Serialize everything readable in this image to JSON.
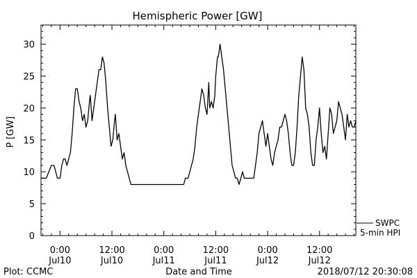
{
  "chart_data": {
    "type": "line",
    "title": "Hemispheric Power [GW]",
    "xlabel": "Date and Time",
    "ylabel": "P [GW]",
    "ylim": [
      0,
      33
    ],
    "yticks": [
      0,
      5,
      10,
      15,
      20,
      25,
      30
    ],
    "xlim_hours": [
      -2.2,
      34.2
    ],
    "xticks": [
      {
        "h": 0,
        "time": "0:00",
        "date": "Jul10"
      },
      {
        "h": 6,
        "time": "12:00",
        "date": "Jul10"
      },
      {
        "h": 12,
        "time": "0:00",
        "date": "Jul11"
      },
      {
        "h": 18,
        "time": "12:00",
        "date": "Jul11"
      },
      {
        "h": 24,
        "time": "0:00",
        "date": "Jul12"
      },
      {
        "h": 30,
        "time": "12:00",
        "date": "Jul12"
      }
    ],
    "series": [
      {
        "name": "SWPC 5-min HPI",
        "color": "#000000",
        "points": [
          [
            -2.2,
            9
          ],
          [
            -1.6,
            9
          ],
          [
            -1.3,
            10
          ],
          [
            -1.0,
            11
          ],
          [
            -0.7,
            11
          ],
          [
            -0.5,
            10
          ],
          [
            -0.3,
            9
          ],
          [
            0.0,
            9
          ],
          [
            0.2,
            11
          ],
          [
            0.4,
            12
          ],
          [
            0.6,
            12
          ],
          [
            0.8,
            11
          ],
          [
            1.0,
            12
          ],
          [
            1.2,
            13
          ],
          [
            1.4,
            16
          ],
          [
            1.6,
            20
          ],
          [
            1.8,
            23
          ],
          [
            2.0,
            23
          ],
          [
            2.2,
            21
          ],
          [
            2.4,
            20
          ],
          [
            2.6,
            18
          ],
          [
            2.8,
            19
          ],
          [
            3.0,
            17
          ],
          [
            3.2,
            18
          ],
          [
            3.4,
            21
          ],
          [
            3.5,
            22
          ],
          [
            3.7,
            18
          ],
          [
            3.9,
            20
          ],
          [
            4.1,
            22
          ],
          [
            4.3,
            24
          ],
          [
            4.5,
            26
          ],
          [
            4.7,
            26
          ],
          [
            4.9,
            28
          ],
          [
            5.1,
            27
          ],
          [
            5.3,
            24
          ],
          [
            5.5,
            20
          ],
          [
            5.7,
            17
          ],
          [
            5.9,
            14
          ],
          [
            6.1,
            15
          ],
          [
            6.3,
            18
          ],
          [
            6.4,
            19
          ],
          [
            6.6,
            15
          ],
          [
            6.8,
            16
          ],
          [
            7.0,
            14
          ],
          [
            7.2,
            12
          ],
          [
            7.4,
            13
          ],
          [
            7.6,
            11
          ],
          [
            7.8,
            10
          ],
          [
            8.0,
            9
          ],
          [
            8.2,
            8
          ],
          [
            9.0,
            8
          ],
          [
            10.0,
            8
          ],
          [
            11.0,
            8
          ],
          [
            12.0,
            8
          ],
          [
            13.0,
            8
          ],
          [
            14.0,
            8
          ],
          [
            14.3,
            8
          ],
          [
            14.5,
            9
          ],
          [
            14.8,
            9
          ],
          [
            15.0,
            10
          ],
          [
            15.2,
            11
          ],
          [
            15.4,
            12
          ],
          [
            15.6,
            14
          ],
          [
            15.8,
            17
          ],
          [
            16.0,
            19
          ],
          [
            16.2,
            21
          ],
          [
            16.4,
            23
          ],
          [
            16.6,
            22
          ],
          [
            16.8,
            20
          ],
          [
            17.0,
            19
          ],
          [
            17.2,
            24
          ],
          [
            17.3,
            20
          ],
          [
            17.5,
            21
          ],
          [
            17.7,
            20
          ],
          [
            17.9,
            22
          ],
          [
            18.0,
            25
          ],
          [
            18.2,
            28
          ],
          [
            18.3,
            28
          ],
          [
            18.4,
            29
          ],
          [
            18.5,
            30
          ],
          [
            18.7,
            28
          ],
          [
            18.9,
            26
          ],
          [
            19.1,
            23
          ],
          [
            19.3,
            20
          ],
          [
            19.5,
            17
          ],
          [
            19.7,
            14
          ],
          [
            19.9,
            11
          ],
          [
            20.1,
            10
          ],
          [
            20.3,
            9
          ],
          [
            20.5,
            9
          ],
          [
            20.7,
            8
          ],
          [
            20.9,
            9
          ],
          [
            21.1,
            10
          ],
          [
            21.3,
            9
          ],
          [
            22.0,
            9
          ],
          [
            22.4,
            9
          ],
          [
            22.6,
            11
          ],
          [
            22.8,
            13
          ],
          [
            23.0,
            16
          ],
          [
            23.2,
            17
          ],
          [
            23.4,
            18
          ],
          [
            23.6,
            16
          ],
          [
            23.8,
            14
          ],
          [
            24.0,
            16
          ],
          [
            24.2,
            14
          ],
          [
            24.4,
            12
          ],
          [
            24.6,
            11
          ],
          [
            24.8,
            13
          ],
          [
            25.0,
            14
          ],
          [
            25.2,
            15
          ],
          [
            25.4,
            17
          ],
          [
            25.6,
            17
          ],
          [
            25.8,
            18
          ],
          [
            26.0,
            19
          ],
          [
            26.2,
            18
          ],
          [
            26.4,
            16
          ],
          [
            26.6,
            13
          ],
          [
            26.8,
            11
          ],
          [
            27.0,
            11
          ],
          [
            27.2,
            13
          ],
          [
            27.4,
            17
          ],
          [
            27.6,
            22
          ],
          [
            27.8,
            25
          ],
          [
            28.0,
            28
          ],
          [
            28.2,
            26
          ],
          [
            28.4,
            20
          ],
          [
            28.6,
            19
          ],
          [
            28.8,
            17
          ],
          [
            29.0,
            13
          ],
          [
            29.2,
            11
          ],
          [
            29.4,
            11
          ],
          [
            29.6,
            15
          ],
          [
            29.8,
            17
          ],
          [
            30.0,
            20
          ],
          [
            30.2,
            16
          ],
          [
            30.4,
            13
          ],
          [
            30.6,
            14
          ],
          [
            30.8,
            12
          ],
          [
            31.0,
            16
          ],
          [
            31.2,
            20
          ],
          [
            31.4,
            19
          ],
          [
            31.6,
            16
          ],
          [
            31.8,
            17
          ],
          [
            32.0,
            18
          ],
          [
            32.2,
            21
          ],
          [
            32.4,
            20
          ],
          [
            32.6,
            19
          ],
          [
            32.8,
            17
          ],
          [
            33.0,
            15
          ],
          [
            33.2,
            19
          ],
          [
            33.4,
            17
          ],
          [
            33.6,
            18
          ],
          [
            33.8,
            17
          ],
          [
            34.0,
            17
          ],
          [
            34.2,
            18
          ]
        ]
      }
    ],
    "legend": {
      "line1": "SWPC",
      "line2": "5-min HPI",
      "position": "bottom-right outside"
    }
  },
  "footer": {
    "left": "Plot: CCMC",
    "right": "2018/07/12 20:30:08"
  }
}
